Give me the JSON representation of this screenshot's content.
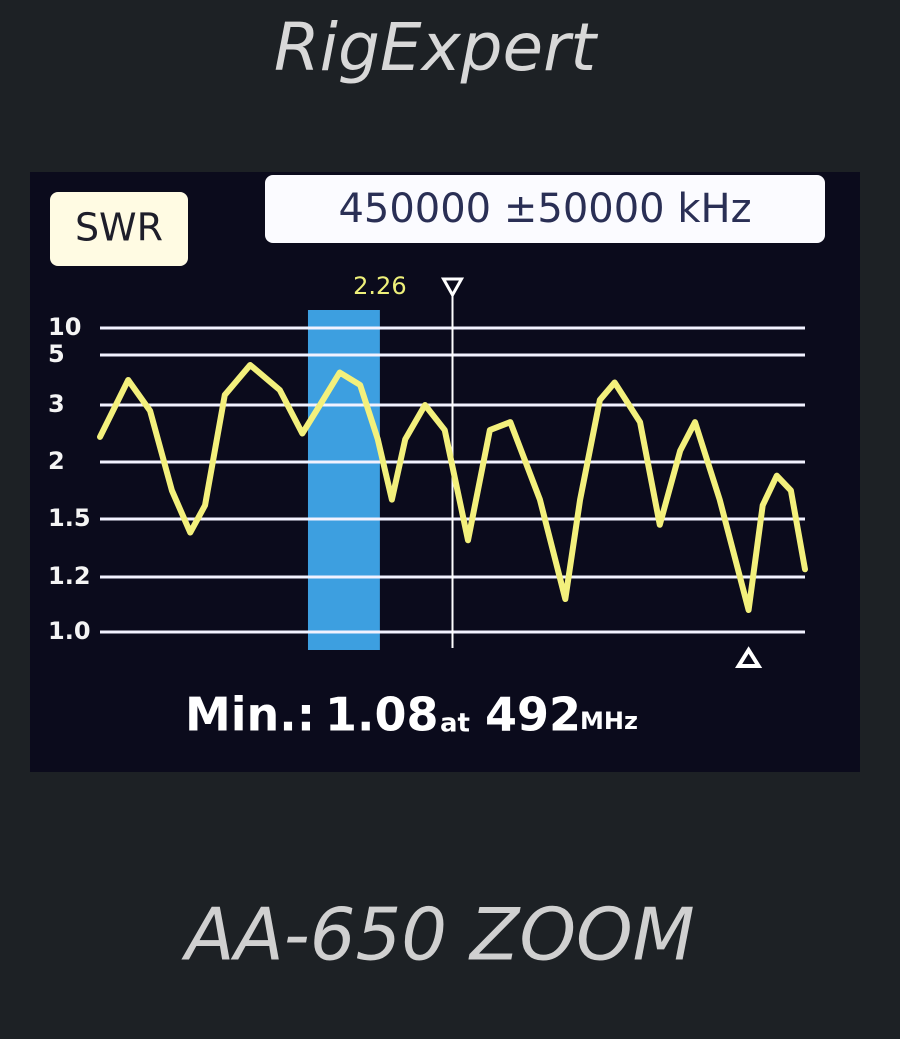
{
  "device": {
    "brand": "RigExpert",
    "model": "AA-650 ZOOM"
  },
  "header": {
    "mode": "SWR",
    "range": "450000 ±50000 kHz"
  },
  "chart_data": {
    "type": "line",
    "x": [
      400,
      404,
      407.1,
      410.2,
      412.8,
      414.9,
      417.7,
      421.3,
      425.5,
      428.7,
      431.2,
      434,
      436.9,
      439.4,
      441.4,
      443.3,
      446.1,
      448.9,
      452.2,
      455.3,
      458.2,
      462.4,
      466,
      468.1,
      470.9,
      473,
      476.6,
      479.4,
      482.3,
      484.4,
      487.9,
      492,
      494,
      496,
      498,
      500
    ],
    "series": [
      {
        "name": "SWR",
        "color": "#f3f07c",
        "values": [
          2.44,
          4.0,
          2.9,
          1.75,
          1.43,
          1.62,
          3.4,
          4.6,
          3.6,
          2.5,
          3.0,
          4.3,
          3.8,
          2.4,
          1.67,
          2.4,
          3.0,
          2.56,
          1.39,
          2.56,
          2.7,
          1.67,
          1.12,
          1.67,
          3.2,
          3.9,
          2.7,
          1.47,
          2.2,
          2.7,
          1.67,
          1.08,
          1.62,
          1.88,
          1.75,
          1.24
        ]
      }
    ],
    "xlim": [
      400,
      500
    ],
    "ylim": [
      1,
      10
    ],
    "yticks": [
      {
        "value": 1,
        "label": "1.0"
      },
      1.2,
      1.5,
      2,
      3,
      5,
      10
    ],
    "grid": true,
    "band": [
      429.5,
      439.7
    ],
    "band_color": "#3d9fe0",
    "cursor": 450,
    "cursor_value": 2.26
  },
  "footer": {
    "min_label": "Min.:",
    "min_value": 1.08,
    "at": "at",
    "min_freq": 492,
    "unit": "MHz"
  }
}
